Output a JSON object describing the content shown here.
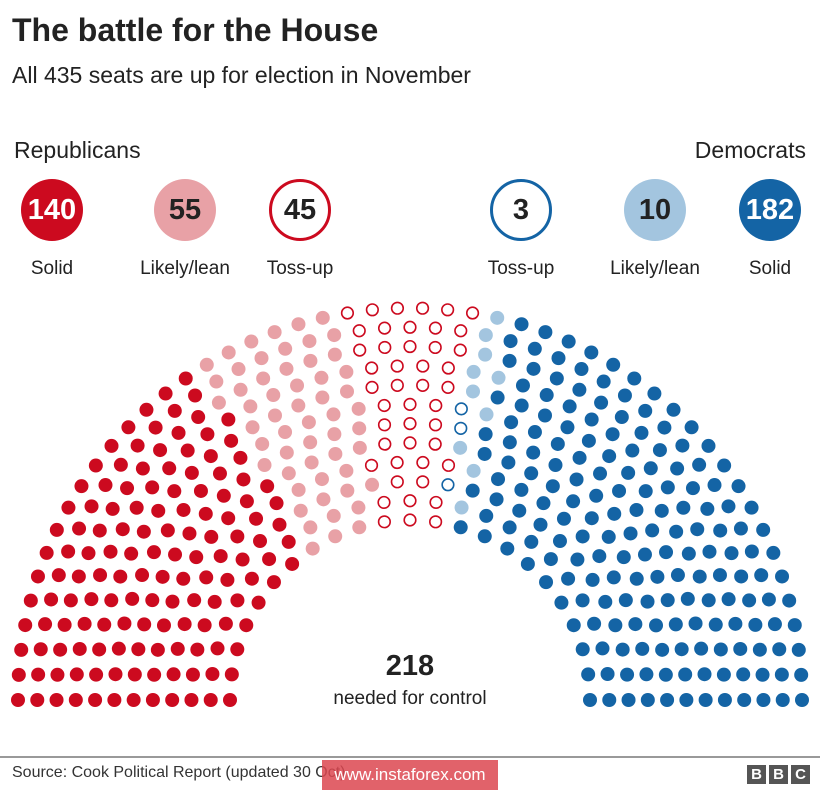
{
  "chart_data": {
    "type": "parliament",
    "title": "The battle for the House",
    "subtitle": "All 435 seats are up for election in November",
    "total_seats": 435,
    "groups": [
      {
        "party": "Republicans",
        "label": "Solid",
        "value": 140,
        "color": "#cc0a1f",
        "style": "filled"
      },
      {
        "party": "Republicans",
        "label": "Likely/lean",
        "value": 55,
        "color": "#e8a1a6",
        "style": "filled"
      },
      {
        "party": "Republicans",
        "label": "Toss-up",
        "value": 45,
        "color": "#cc0a1f",
        "style": "outline"
      },
      {
        "party": "Democrats",
        "label": "Toss-up",
        "value": 3,
        "color": "#1464a5",
        "style": "outline"
      },
      {
        "party": "Democrats",
        "label": "Likely/lean",
        "value": 10,
        "color": "#a3c5df",
        "style": "filled"
      },
      {
        "party": "Democrats",
        "label": "Solid",
        "value": 182,
        "color": "#1464a5",
        "style": "filled"
      }
    ],
    "majority": {
      "value": "218",
      "label": "needed for control"
    }
  },
  "legend": {
    "republicans": "Republicans",
    "democrats": "Democrats"
  },
  "footer": {
    "source": "Source: Cook Political Report (updated 30 Oct)",
    "watermark": "www.instaforex.com",
    "logo": [
      "B",
      "B",
      "C"
    ]
  }
}
